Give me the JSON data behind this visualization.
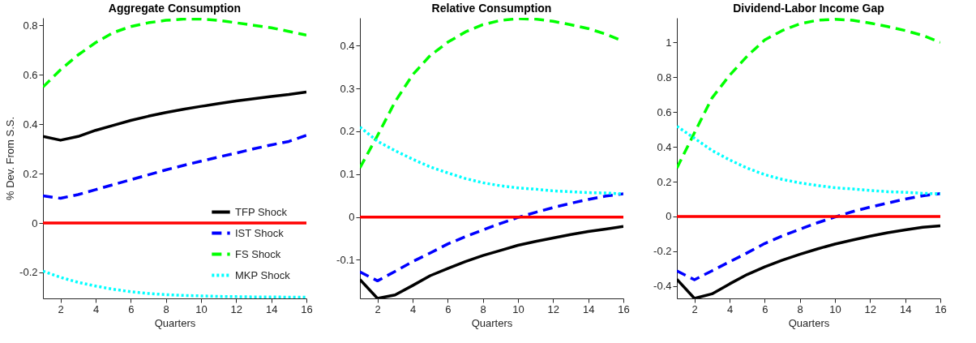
{
  "chart_data": [
    {
      "type": "line",
      "title": "Aggregate Consumption",
      "xlabel": "Quarters",
      "ylabel": "% Dev. From S.S.",
      "x": [
        1,
        2,
        3,
        4,
        5,
        6,
        7,
        8,
        9,
        10,
        11,
        12,
        13,
        14,
        15,
        16
      ],
      "xlim": [
        1,
        16
      ],
      "xticks": [
        2,
        4,
        6,
        8,
        10,
        12,
        14,
        16
      ],
      "ylim": [
        -0.305,
        0.83
      ],
      "yticks": [
        -0.2,
        0,
        0.2,
        0.4,
        0.6,
        0.8
      ],
      "legend": "bottom right",
      "series": [
        {
          "name": "TFP Shock",
          "color": "#000000",
          "line_style": "solid",
          "values": [
            0.35,
            0.335,
            0.35,
            0.375,
            0.395,
            0.415,
            0.432,
            0.447,
            0.46,
            0.472,
            0.483,
            0.494,
            0.503,
            0.512,
            0.52,
            0.53
          ]
        },
        {
          "name": "IST Shock",
          "color": "#0000ff",
          "line_style": "dashed",
          "values": [
            0.11,
            0.1,
            0.115,
            0.135,
            0.155,
            0.175,
            0.195,
            0.215,
            0.233,
            0.25,
            0.267,
            0.283,
            0.3,
            0.316,
            0.33,
            0.355
          ]
        },
        {
          "name": "FS Shock",
          "color": "#00ff00",
          "line_style": "dashed",
          "values": [
            0.55,
            0.62,
            0.68,
            0.73,
            0.77,
            0.795,
            0.81,
            0.82,
            0.825,
            0.825,
            0.82,
            0.81,
            0.8,
            0.79,
            0.775,
            0.76
          ]
        },
        {
          "name": "MKP Shock",
          "color": "#00ffff",
          "line_style": "dotted",
          "values": [
            -0.195,
            -0.22,
            -0.24,
            -0.255,
            -0.268,
            -0.278,
            -0.285,
            -0.29,
            -0.293,
            -0.295,
            -0.297,
            -0.298,
            -0.299,
            -0.299,
            -0.3,
            -0.3
          ]
        }
      ],
      "ref_lines": [
        {
          "axis": "y",
          "value": 0,
          "color": "#ff0000"
        }
      ]
    },
    {
      "type": "line",
      "title": "Relative Consumption",
      "xlabel": "Quarters",
      "x": [
        1,
        2,
        3,
        4,
        5,
        6,
        7,
        8,
        9,
        10,
        11,
        12,
        13,
        14,
        15,
        16
      ],
      "xlim": [
        1,
        16
      ],
      "xticks": [
        2,
        4,
        6,
        8,
        10,
        12,
        14,
        16
      ],
      "ylim": [
        -0.19,
        0.465
      ],
      "yticks": [
        -0.1,
        0,
        0.1,
        0.2,
        0.3,
        0.4
      ],
      "series": [
        {
          "color": "#000000",
          "line_style": "solid",
          "values": [
            -0.146,
            -0.19,
            -0.182,
            -0.16,
            -0.137,
            -0.12,
            -0.104,
            -0.09,
            -0.078,
            -0.066,
            -0.057,
            -0.049,
            -0.041,
            -0.034,
            -0.028,
            -0.022
          ]
        },
        {
          "color": "#0000ff",
          "line_style": "dashed",
          "values": [
            -0.128,
            -0.149,
            -0.127,
            -0.104,
            -0.084,
            -0.063,
            -0.046,
            -0.03,
            -0.015,
            -0.001,
            0.011,
            0.022,
            0.032,
            0.041,
            0.049,
            0.054
          ]
        },
        {
          "color": "#00ff00",
          "line_style": "dashed",
          "values": [
            0.115,
            0.19,
            0.269,
            0.332,
            0.377,
            0.408,
            0.432,
            0.449,
            0.459,
            0.463,
            0.462,
            0.457,
            0.449,
            0.44,
            0.427,
            0.41
          ]
        },
        {
          "color": "#00ffff",
          "line_style": "dotted",
          "values": [
            0.21,
            0.177,
            0.155,
            0.135,
            0.117,
            0.103,
            0.09,
            0.08,
            0.073,
            0.068,
            0.065,
            0.061,
            0.059,
            0.057,
            0.056,
            0.054
          ]
        }
      ],
      "ref_lines": [
        {
          "axis": "y",
          "value": 0,
          "color": "#ff0000"
        }
      ]
    },
    {
      "type": "line",
      "title": "Dividend-Labor Income Gap",
      "xlabel": "Quarters",
      "x": [
        1,
        2,
        3,
        4,
        5,
        6,
        7,
        8,
        9,
        10,
        11,
        12,
        13,
        14,
        15,
        16
      ],
      "xlim": [
        1,
        16
      ],
      "xticks": [
        2,
        4,
        6,
        8,
        10,
        12,
        14,
        16
      ],
      "ylim": [
        -0.47,
        1.14
      ],
      "yticks": [
        -0.4,
        -0.2,
        0,
        0.2,
        0.4,
        0.6,
        0.8,
        1
      ],
      "series": [
        {
          "color": "#000000",
          "line_style": "solid",
          "values": [
            -0.36,
            -0.47,
            -0.444,
            -0.387,
            -0.333,
            -0.289,
            -0.251,
            -0.217,
            -0.186,
            -0.158,
            -0.135,
            -0.113,
            -0.093,
            -0.077,
            -0.062,
            -0.054
          ]
        },
        {
          "color": "#0000ff",
          "line_style": "dashed",
          "values": [
            -0.312,
            -0.363,
            -0.312,
            -0.26,
            -0.209,
            -0.155,
            -0.111,
            -0.073,
            -0.036,
            -0.003,
            0.028,
            0.054,
            0.077,
            0.1,
            0.119,
            0.131
          ]
        },
        {
          "color": "#00ff00",
          "line_style": "dashed",
          "values": [
            0.278,
            0.48,
            0.68,
            0.81,
            0.92,
            1.013,
            1.067,
            1.106,
            1.126,
            1.132,
            1.126,
            1.11,
            1.09,
            1.067,
            1.039,
            1.0
          ]
        },
        {
          "color": "#00ffff",
          "line_style": "dotted",
          "values": [
            0.518,
            0.449,
            0.379,
            0.325,
            0.278,
            0.24,
            0.213,
            0.193,
            0.178,
            0.165,
            0.158,
            0.15,
            0.142,
            0.139,
            0.133,
            0.13
          ]
        }
      ],
      "ref_lines": [
        {
          "axis": "y",
          "value": 0,
          "color": "#ff0000"
        }
      ]
    }
  ]
}
